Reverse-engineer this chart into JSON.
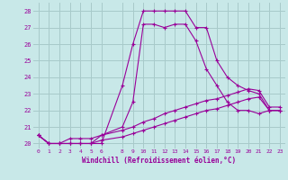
{
  "xlabel": "Windchill (Refroidissement éolien,°C)",
  "background_color": "#c8e8e8",
  "grid_color": "#a8caca",
  "line_color": "#990099",
  "x_ticks": [
    0,
    1,
    2,
    3,
    4,
    5,
    6,
    8,
    9,
    10,
    11,
    12,
    13,
    14,
    15,
    16,
    17,
    18,
    19,
    20,
    21,
    22,
    23
  ],
  "y_ticks": [
    20,
    21,
    22,
    23,
    24,
    25,
    26,
    27,
    28
  ],
  "ylim": [
    19.7,
    28.5
  ],
  "xlim": [
    -0.5,
    23.5
  ],
  "curve1_x": [
    0,
    1,
    2,
    3,
    4,
    5,
    6,
    8,
    9,
    10,
    11,
    12,
    13,
    14,
    15,
    16,
    17,
    18,
    19,
    20,
    21,
    22,
    23
  ],
  "curve1_y": [
    20.5,
    20.0,
    20.0,
    20.0,
    20.0,
    20.0,
    20.0,
    23.5,
    26.0,
    28.0,
    28.0,
    28.0,
    28.0,
    28.0,
    27.0,
    27.0,
    25.0,
    24.0,
    23.5,
    23.2,
    23.0,
    22.0,
    22.0
  ],
  "curve2_x": [
    0,
    1,
    2,
    3,
    4,
    5,
    6,
    8,
    9,
    10,
    11,
    12,
    13,
    14,
    15,
    16,
    17,
    18,
    19,
    20,
    21,
    22,
    23
  ],
  "curve2_y": [
    20.5,
    20.0,
    20.0,
    20.3,
    20.3,
    20.3,
    20.5,
    21.0,
    22.5,
    27.2,
    27.2,
    27.0,
    27.2,
    27.2,
    26.2,
    24.5,
    23.5,
    22.5,
    22.0,
    22.0,
    21.8,
    22.0,
    22.0
  ],
  "curve3_x": [
    0,
    1,
    2,
    3,
    4,
    5,
    6,
    8,
    9,
    10,
    11,
    12,
    13,
    14,
    15,
    16,
    17,
    18,
    19,
    20,
    21,
    22,
    23
  ],
  "curve3_y": [
    20.5,
    20.0,
    20.0,
    20.0,
    20.0,
    20.0,
    20.5,
    20.8,
    21.0,
    21.3,
    21.5,
    21.8,
    22.0,
    22.2,
    22.4,
    22.6,
    22.7,
    22.9,
    23.1,
    23.3,
    23.2,
    22.2,
    22.2
  ],
  "curve4_x": [
    0,
    1,
    2,
    3,
    4,
    5,
    6,
    8,
    9,
    10,
    11,
    12,
    13,
    14,
    15,
    16,
    17,
    18,
    19,
    20,
    21,
    22,
    23
  ],
  "curve4_y": [
    20.5,
    20.0,
    20.0,
    20.0,
    20.0,
    20.0,
    20.2,
    20.4,
    20.6,
    20.8,
    21.0,
    21.2,
    21.4,
    21.6,
    21.8,
    22.0,
    22.1,
    22.3,
    22.5,
    22.7,
    22.8,
    22.0,
    22.0
  ]
}
